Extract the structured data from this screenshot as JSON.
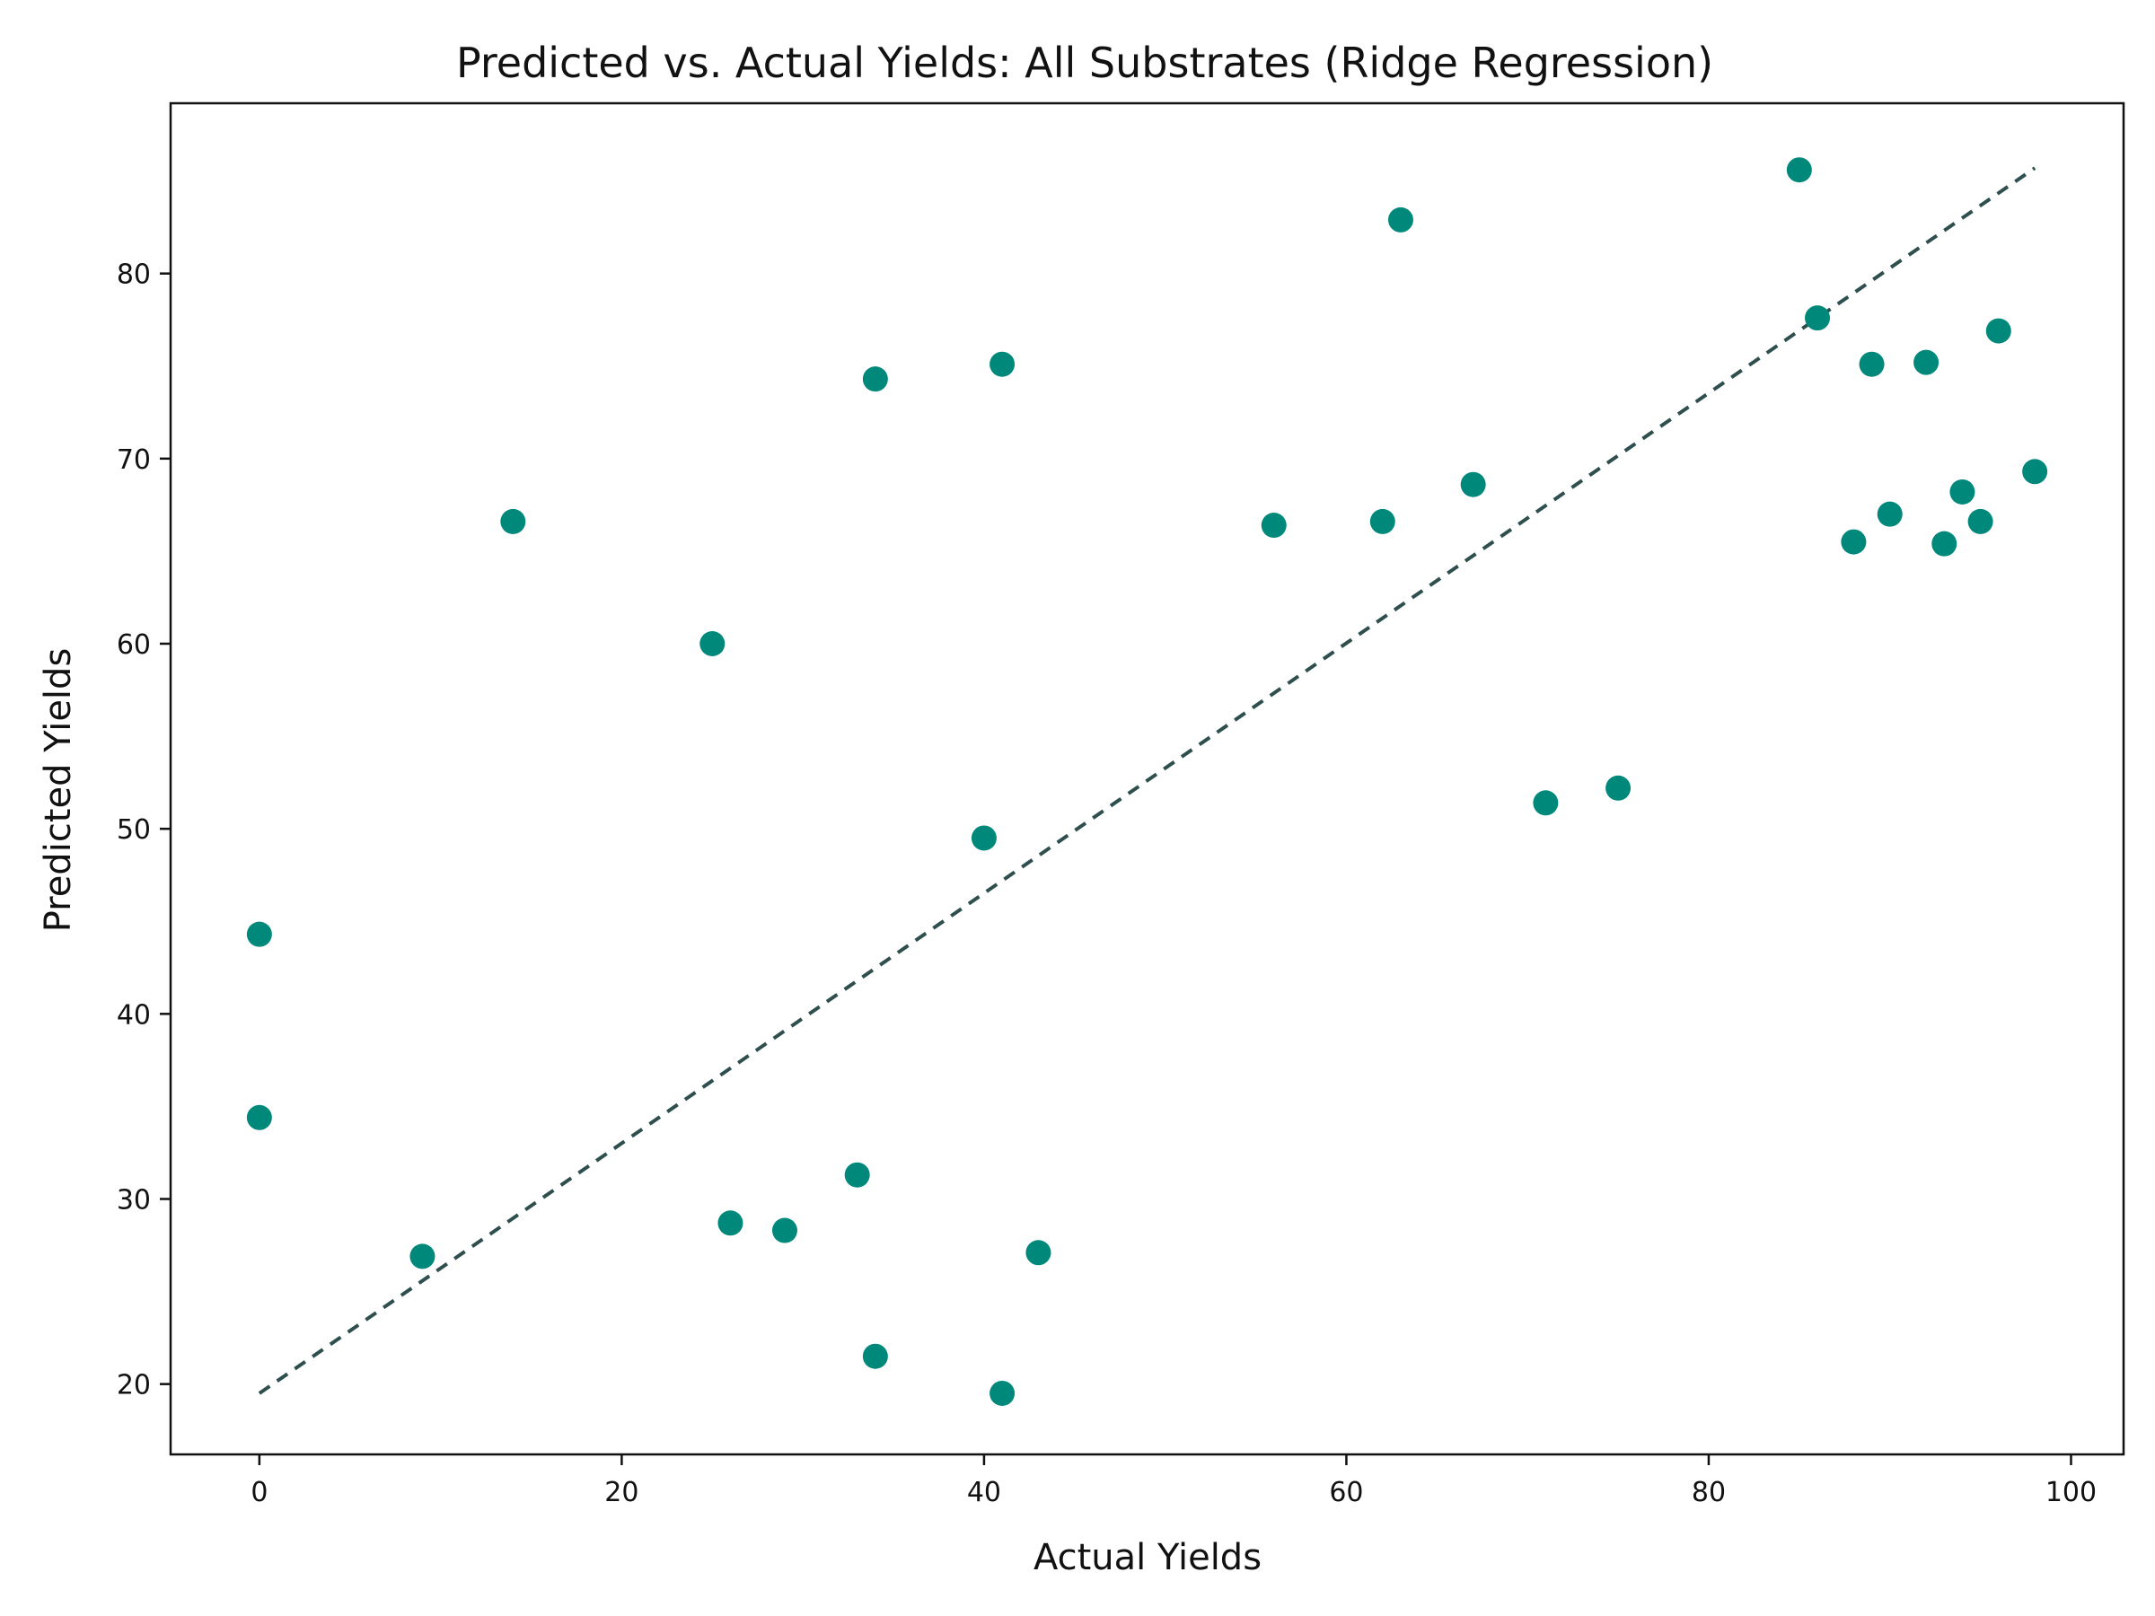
{
  "chart_data": {
    "type": "scatter",
    "title": "Predicted vs. Actual Yields: All Substrates (Ridge Regression)",
    "xlabel": "Actual Yields",
    "ylabel": "Predicted Yields",
    "xlim": [
      -4.9,
      102.9
    ],
    "ylim": [
      16.2,
      89.2
    ],
    "xticks": [
      0,
      20,
      40,
      60,
      80,
      100
    ],
    "yticks": [
      20,
      30,
      40,
      50,
      60,
      70,
      80
    ],
    "grid": false,
    "point_color": "#00897b",
    "line_color": "#2f4f4f",
    "series": [
      {
        "x": [
          0,
          0,
          9,
          14,
          25,
          26,
          29,
          33,
          34,
          34,
          40,
          41,
          41,
          43,
          56,
          62,
          63,
          67,
          71,
          75,
          85,
          86,
          88,
          89,
          90,
          92,
          93,
          94,
          95,
          96,
          98
        ],
        "y": [
          44.3,
          34.4,
          26.9,
          66.6,
          60.0,
          28.7,
          28.3,
          31.3,
          74.3,
          21.5,
          49.5,
          75.1,
          19.5,
          27.1,
          66.4,
          66.6,
          82.9,
          68.6,
          51.4,
          52.2,
          85.6,
          77.6,
          65.5,
          75.1,
          67.0,
          75.2,
          65.4,
          68.2,
          66.6,
          76.9,
          69.3
        ]
      }
    ],
    "reference_line": {
      "x": [
        0,
        98
      ],
      "y": [
        19.5,
        85.7
      ],
      "style": "dashed"
    }
  }
}
